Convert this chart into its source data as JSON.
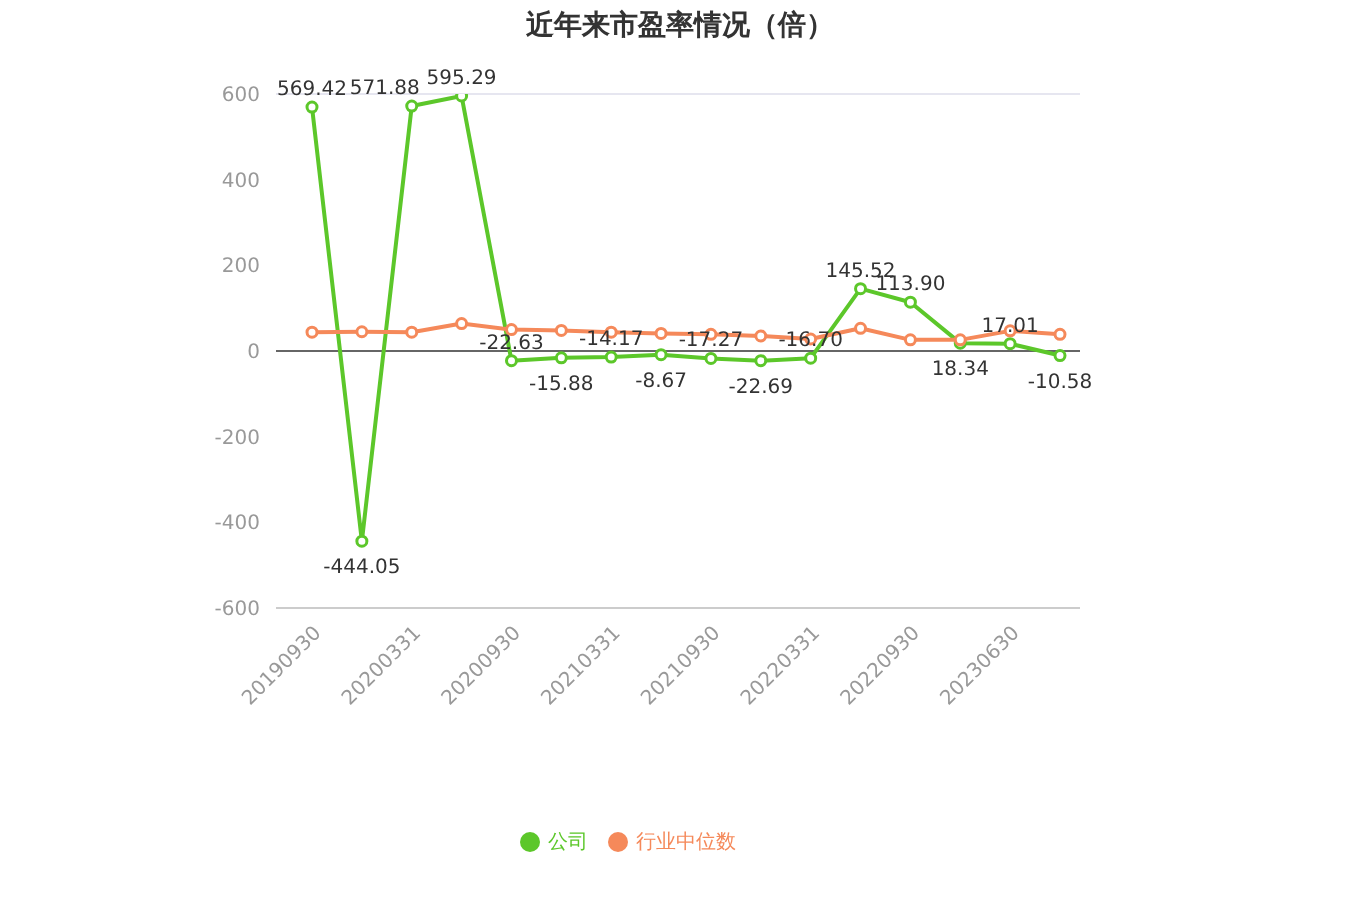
{
  "chart_data": {
    "type": "line",
    "title": "近年来市盈率情况（倍）",
    "categories": [
      "20190930",
      null,
      "20200331",
      null,
      "20200930",
      null,
      "20210331",
      null,
      "20210930",
      null,
      "20220331",
      null,
      "20220930",
      null,
      "20230630",
      null
    ],
    "series": [
      {
        "name": "公司",
        "color": "#5cc72a",
        "values": [
          569.42,
          -444.05,
          571.88,
          595.29,
          -22.63,
          -15.88,
          -14.17,
          -8.67,
          -17.27,
          -22.69,
          -16.7,
          145.52,
          113.9,
          18.34,
          17.01,
          -10.58
        ],
        "value_labels": [
          "569.42",
          "-444.05",
          "571.88",
          "595.29",
          "-22.63",
          "-15.88",
          "-14.17",
          "-8.67",
          "-17.27",
          "-22.69",
          "-16.70",
          "145.52",
          "113.90",
          "18.34",
          "17.01",
          "-10.58"
        ]
      },
      {
        "name": "行业中位数",
        "color": "#f5895a",
        "values": [
          44,
          45,
          44,
          64,
          50,
          48,
          44,
          41,
          39,
          35,
          28,
          53,
          26,
          26,
          47,
          39
        ]
      }
    ],
    "ylim": [
      -600,
      600
    ],
    "yticks": [
      -600,
      -400,
      -200,
      0,
      200,
      400,
      600
    ],
    "grid": "y",
    "legend": "bottom",
    "marker": "circle",
    "line_style": "solid"
  }
}
